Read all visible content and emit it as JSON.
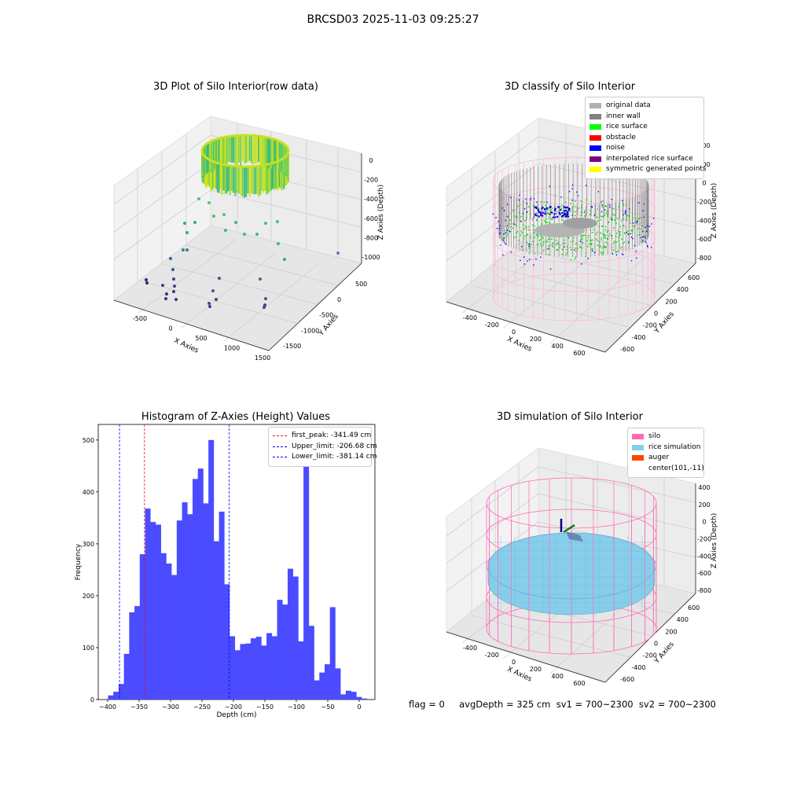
{
  "suptitle": "BRCSD03 2025-11-03 09:25:27",
  "footer": "flag = 0     avgDepth = 325 cm  sv1 = 700~2300  sv2 = 700~2300",
  "panels": {
    "raw": {
      "title": "3D Plot of Silo Interior(row data)",
      "xlabel": "X Axies",
      "ylabel": "Y Axies",
      "zlabel": "Z Axies (Depth)",
      "xticks": [
        "-500",
        "0",
        "500",
        "1000",
        "1500"
      ],
      "yticks": [
        "500",
        "0",
        "-500",
        "-1000",
        "-1500"
      ],
      "zticks": [
        "0",
        "-200",
        "-400",
        "-600",
        "-800",
        "-1000"
      ]
    },
    "classify": {
      "title": "3D classify of Silo Interior",
      "xlabel": "X Axies",
      "ylabel": "Y Axies",
      "zlabel": "Z Axies (Depth)",
      "xticks": [
        "-400",
        "-200",
        "0",
        "200",
        "400",
        "600"
      ],
      "yticks": [
        "600",
        "400",
        "200",
        "0",
        "-200",
        "-400",
        "-600"
      ],
      "zticks": [
        "400",
        "200",
        "0",
        "-200",
        "-400",
        "-600",
        "-800"
      ],
      "legend": [
        {
          "label": "original data",
          "color": "#b0b0b0"
        },
        {
          "label": "inner wall",
          "color": "#808080"
        },
        {
          "label": "rice surface",
          "color": "#00ff00"
        },
        {
          "label": "obstacle",
          "color": "#ff0000"
        },
        {
          "label": "noise",
          "color": "#0000ff"
        },
        {
          "label": "interpolated rice surface",
          "color": "#800080"
        },
        {
          "label": "symmetric generated points",
          "color": "#ffff00"
        }
      ]
    },
    "simulation": {
      "title": "3D simulation of Silo Interior",
      "xlabel": "X Axies",
      "ylabel": "Y Axies",
      "zlabel": "Z Axies (Depth)",
      "xticks": [
        "-400",
        "-200",
        "0",
        "200",
        "400",
        "600"
      ],
      "yticks": [
        "600",
        "400",
        "200",
        "0",
        "-200",
        "-400",
        "-600"
      ],
      "zticks": [
        "400",
        "200",
        "0",
        "-200",
        "-400",
        "-600",
        "-800"
      ],
      "legend": [
        {
          "label": "silo",
          "color": "#ff69b4"
        },
        {
          "label": "rice simulation",
          "color": "#87ceeb"
        },
        {
          "label": "auger",
          "color": "#ff4500"
        },
        {
          "label": "center(101,-11)",
          "color": ""
        }
      ]
    }
  },
  "chart_data": {
    "type": "bar",
    "title": "Histogram of Z-Axies (Height) Values",
    "xlabel": "Depth (cm)",
    "ylabel": "Frequency",
    "xlim": [
      -415,
      25
    ],
    "ylim": [
      0,
      530
    ],
    "xticks": [
      -400,
      -350,
      -300,
      -250,
      -200,
      -150,
      -100,
      -50,
      0
    ],
    "yticks": [
      0,
      100,
      200,
      300,
      400,
      500
    ],
    "bar_color": "#4b4bff",
    "bin_width": 8.4,
    "bin_start": -399.4,
    "values": [
      8,
      15,
      30,
      88,
      168,
      180,
      280,
      368,
      342,
      337,
      282,
      262,
      240,
      345,
      380,
      357,
      425,
      445,
      378,
      500,
      305,
      362,
      222,
      122,
      95,
      107,
      108,
      118,
      121,
      104,
      128,
      122,
      192,
      183,
      252,
      237,
      112,
      455,
      142,
      37,
      52,
      68,
      178,
      60,
      10,
      17,
      15,
      5,
      2
    ],
    "vlines": [
      {
        "label": "first_peak: -341.49 cm",
        "x": -341.49,
        "color": "#ff0000"
      },
      {
        "label": "Upper_limit: -206.68 cm",
        "x": -206.68,
        "color": "#0000ff"
      },
      {
        "label": "Lower_limit: -381.14 cm",
        "x": -381.14,
        "color": "#0000ff"
      }
    ]
  }
}
